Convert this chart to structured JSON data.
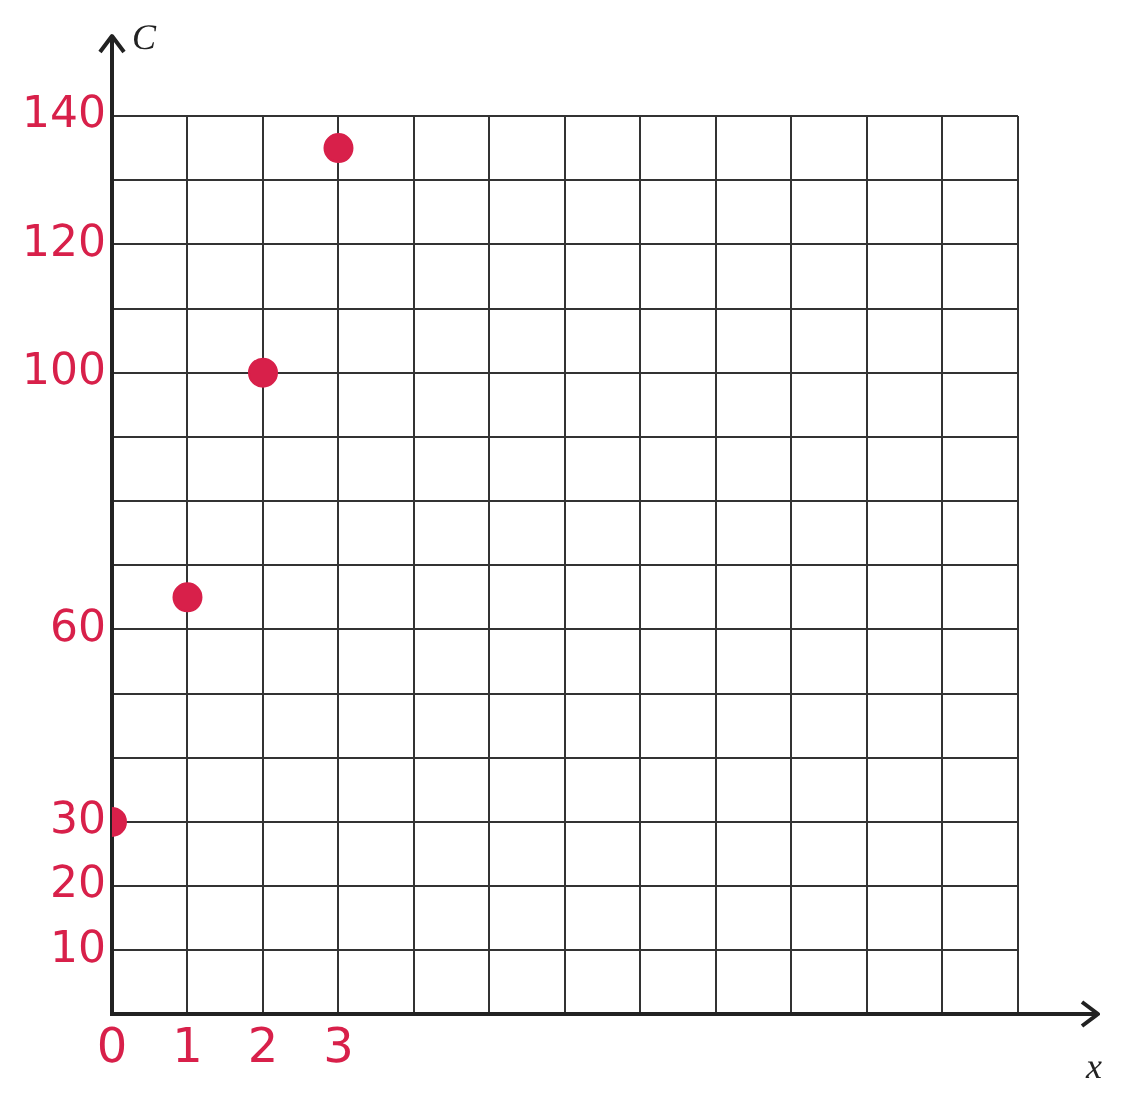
{
  "chart_data": {
    "type": "scatter",
    "xlabel": "x",
    "ylabel": "C",
    "x": [
      0,
      1,
      2,
      3
    ],
    "series": [
      {
        "color": "#d8204a",
        "values": [
          30,
          65,
          100,
          135
        ]
      }
    ],
    "xlim": [
      0,
      12
    ],
    "ylim": [
      0,
      140
    ],
    "xticks": [
      0,
      1,
      2,
      3,
      {
        "value": 4,
        "label": null
      },
      {
        "value": 5,
        "label": null
      },
      {
        "value": 6,
        "label": null
      },
      {
        "value": 7,
        "label": null
      },
      {
        "value": 8,
        "label": null
      },
      {
        "value": 9,
        "label": null
      },
      {
        "value": 10,
        "label": null
      },
      {
        "value": 11,
        "label": null
      },
      {
        "value": 12,
        "label": null
      }
    ],
    "yticks": [
      {
        "value": 0,
        "label": null
      },
      10,
      20,
      30,
      {
        "value": 40,
        "label": null
      },
      {
        "value": 50,
        "label": null
      },
      60,
      {
        "value": 70,
        "label": null
      },
      {
        "value": 80,
        "label": null
      },
      {
        "value": 90,
        "label": null
      },
      100,
      {
        "value": 110,
        "label": null
      },
      120,
      {
        "value": 130,
        "label": null
      },
      140
    ],
    "grid": true,
    "marker": "circle",
    "legend": false
  }
}
